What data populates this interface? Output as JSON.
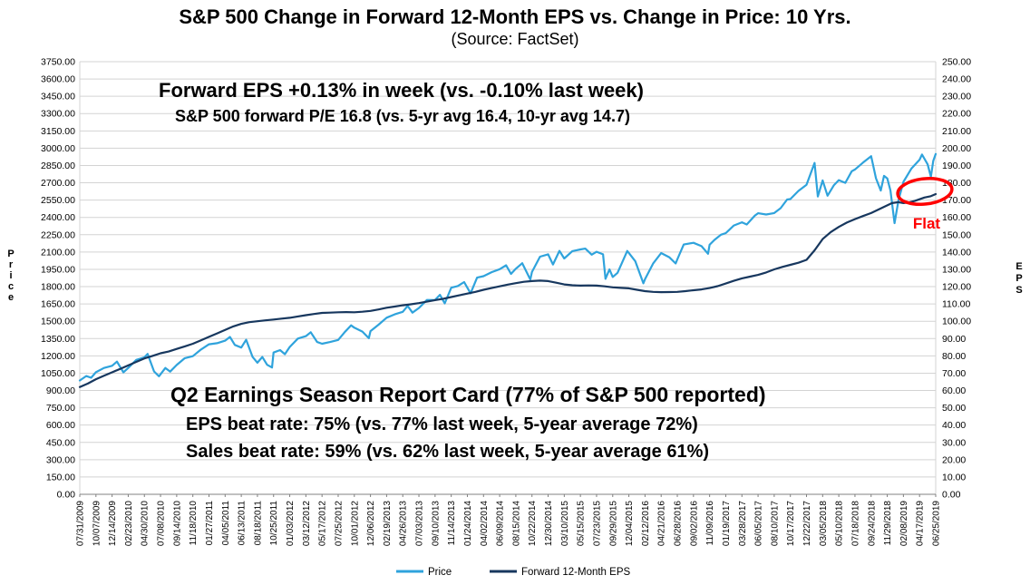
{
  "chart_data": {
    "type": "line",
    "title": "S&P 500 Change in Forward 12-Month EPS vs. Change in Price: 10 Yrs.",
    "subtitle": "(Source: FactSet)",
    "legend_position": "bottom",
    "grid": "horizontal",
    "colors": {
      "grid": "#D3D3D3",
      "axis": "#808080",
      "annotation_red": "#FF0000",
      "text": "#000000"
    },
    "y_left": {
      "label": "Price",
      "min": 0,
      "max": 3750,
      "step": 150
    },
    "y_right": {
      "label": "EPS",
      "min": 0,
      "max": 250,
      "step": 10
    },
    "x_tick_labels": [
      "07/31/2009",
      "10/07/2009",
      "12/14/2009",
      "02/23/2010",
      "04/30/2010",
      "07/08/2010",
      "09/14/2010",
      "11/18/2010",
      "01/27/2011",
      "04/05/2011",
      "06/13/2011",
      "08/18/2011",
      "10/25/2011",
      "01/03/2012",
      "03/12/2012",
      "05/17/2012",
      "07/25/2012",
      "10/01/2012",
      "12/06/2012",
      "02/19/2013",
      "04/26/2013",
      "07/03/2013",
      "09/10/2013",
      "11/14/2013",
      "01/24/2014",
      "04/02/2014",
      "06/09/2014",
      "08/15/2014",
      "10/22/2014",
      "12/30/2014",
      "03/10/2015",
      "05/15/2015",
      "07/23/2015",
      "09/29/2015",
      "12/04/2015",
      "02/12/2016",
      "04/21/2016",
      "06/28/2016",
      "09/02/2016",
      "11/09/2016",
      "01/19/2017",
      "03/28/2017",
      "06/05/2017",
      "08/10/2017",
      "10/17/2017",
      "12/22/2017",
      "03/05/2018",
      "05/10/2018",
      "07/18/2018",
      "09/24/2018",
      "11/29/2018",
      "02/08/2019",
      "04/17/2019",
      "06/25/2019"
    ],
    "annotations": {
      "eps_week": "Forward EPS +0.13% in week (vs. -0.10% last week)",
      "forward_pe": "S&P 500 forward P/E 16.8 (vs. 5-yr avg 16.4, 10-yr avg 14.7)",
      "report_card": "Q2 Earnings Season Report Card (77% of S&P 500 reported)",
      "eps_beat": "EPS beat rate: 75% (vs. 77% last week, 5-year average 72%)",
      "sales_beat": "Sales beat rate: 59% (vs. 62% last week, 5-year average 61%)",
      "flat": "Flat"
    },
    "series": [
      {
        "name": "Price",
        "axis": "left",
        "color": "#2FA3DC",
        "points": [
          [
            0,
            987
          ],
          [
            0.4,
            1025
          ],
          [
            0.7,
            1010
          ],
          [
            1,
            1058
          ],
          [
            1.5,
            1095
          ],
          [
            2,
            1114
          ],
          [
            2.3,
            1150
          ],
          [
            2.7,
            1057
          ],
          [
            3,
            1095
          ],
          [
            3.5,
            1165
          ],
          [
            4,
            1187
          ],
          [
            4.2,
            1217
          ],
          [
            4.6,
            1065
          ],
          [
            4.9,
            1023
          ],
          [
            5.3,
            1095
          ],
          [
            5.6,
            1064
          ],
          [
            6,
            1121
          ],
          [
            6.5,
            1180
          ],
          [
            7,
            1197
          ],
          [
            7.5,
            1255
          ],
          [
            8,
            1300
          ],
          [
            8.5,
            1310
          ],
          [
            9,
            1332
          ],
          [
            9.3,
            1364
          ],
          [
            9.6,
            1295
          ],
          [
            10,
            1272
          ],
          [
            10.3,
            1340
          ],
          [
            10.7,
            1190
          ],
          [
            11,
            1141
          ],
          [
            11.3,
            1190
          ],
          [
            11.6,
            1123
          ],
          [
            11.9,
            1099
          ],
          [
            12,
            1229
          ],
          [
            12.4,
            1250
          ],
          [
            12.7,
            1215
          ],
          [
            13,
            1277
          ],
          [
            13.5,
            1350
          ],
          [
            14,
            1371
          ],
          [
            14.3,
            1405
          ],
          [
            14.7,
            1320
          ],
          [
            15,
            1305
          ],
          [
            15.5,
            1320
          ],
          [
            16,
            1338
          ],
          [
            16.4,
            1405
          ],
          [
            16.8,
            1465
          ],
          [
            17,
            1444
          ],
          [
            17.5,
            1410
          ],
          [
            17.9,
            1353
          ],
          [
            18,
            1414
          ],
          [
            18.5,
            1470
          ],
          [
            19,
            1531
          ],
          [
            19.5,
            1560
          ],
          [
            20,
            1582
          ],
          [
            20.3,
            1633
          ],
          [
            20.6,
            1575
          ],
          [
            21,
            1615
          ],
          [
            21.5,
            1685
          ],
          [
            22,
            1684
          ],
          [
            22.3,
            1729
          ],
          [
            22.6,
            1655
          ],
          [
            23,
            1791
          ],
          [
            23.4,
            1805
          ],
          [
            23.8,
            1840
          ],
          [
            24,
            1790
          ],
          [
            24.2,
            1742
          ],
          [
            24.6,
            1878
          ],
          [
            25,
            1891
          ],
          [
            25.5,
            1925
          ],
          [
            26,
            1951
          ],
          [
            26.4,
            1985
          ],
          [
            26.7,
            1910
          ],
          [
            27,
            1955
          ],
          [
            27.4,
            2003
          ],
          [
            27.9,
            1862
          ],
          [
            28,
            1927
          ],
          [
            28.5,
            2060
          ],
          [
            29,
            2080
          ],
          [
            29.3,
            1992
          ],
          [
            29.7,
            2110
          ],
          [
            30,
            2044
          ],
          [
            30.5,
            2108
          ],
          [
            31,
            2123
          ],
          [
            31.3,
            2130
          ],
          [
            31.7,
            2077
          ],
          [
            32,
            2102
          ],
          [
            32.4,
            2080
          ],
          [
            32.55,
            1868
          ],
          [
            32.8,
            1950
          ],
          [
            33,
            1884
          ],
          [
            33.3,
            1920
          ],
          [
            33.9,
            2109
          ],
          [
            34,
            2092
          ],
          [
            34.4,
            2020
          ],
          [
            34.9,
            1829
          ],
          [
            35,
            1865
          ],
          [
            35.5,
            2000
          ],
          [
            36,
            2091
          ],
          [
            36.5,
            2055
          ],
          [
            36.9,
            2001
          ],
          [
            37,
            2036
          ],
          [
            37.4,
            2165
          ],
          [
            38,
            2180
          ],
          [
            38.5,
            2151
          ],
          [
            38.9,
            2085
          ],
          [
            39,
            2163
          ],
          [
            39.3,
            2205
          ],
          [
            39.7,
            2250
          ],
          [
            40,
            2264
          ],
          [
            40.5,
            2330
          ],
          [
            41,
            2358
          ],
          [
            41.3,
            2339
          ],
          [
            41.8,
            2415
          ],
          [
            42,
            2436
          ],
          [
            42.5,
            2425
          ],
          [
            43,
            2438
          ],
          [
            43.4,
            2480
          ],
          [
            43.8,
            2555
          ],
          [
            44,
            2559
          ],
          [
            44.5,
            2630
          ],
          [
            45,
            2683
          ],
          [
            45.5,
            2873
          ],
          [
            45.7,
            2581
          ],
          [
            46,
            2721
          ],
          [
            46.3,
            2588
          ],
          [
            46.7,
            2680
          ],
          [
            47,
            2723
          ],
          [
            47.4,
            2700
          ],
          [
            47.8,
            2800
          ],
          [
            48,
            2815
          ],
          [
            48.5,
            2875
          ],
          [
            49,
            2931
          ],
          [
            49.3,
            2740
          ],
          [
            49.6,
            2633
          ],
          [
            49.8,
            2760
          ],
          [
            50,
            2738
          ],
          [
            50.2,
            2633
          ],
          [
            50.45,
            2351
          ],
          [
            50.7,
            2550
          ],
          [
            51,
            2708
          ],
          [
            51.5,
            2825
          ],
          [
            52,
            2900
          ],
          [
            52.15,
            2945
          ],
          [
            52.5,
            2860
          ],
          [
            52.7,
            2752
          ],
          [
            52.85,
            2890
          ],
          [
            53,
            2950
          ]
        ]
      },
      {
        "name": "Forward 12-Month EPS",
        "axis": "right",
        "color": "#17375E",
        "points": [
          [
            0,
            62
          ],
          [
            0.5,
            64
          ],
          [
            1,
            66.5
          ],
          [
            1.5,
            68.5
          ],
          [
            2,
            70.5
          ],
          [
            2.5,
            72.5
          ],
          [
            3,
            74.5
          ],
          [
            3.5,
            76.5
          ],
          [
            4,
            78.5
          ],
          [
            4.5,
            80
          ],
          [
            5,
            81.5
          ],
          [
            5.5,
            82.5
          ],
          [
            6,
            84
          ],
          [
            6.5,
            85.5
          ],
          [
            7,
            87
          ],
          [
            7.5,
            89
          ],
          [
            8,
            91
          ],
          [
            8.5,
            93
          ],
          [
            9,
            95
          ],
          [
            9.5,
            97
          ],
          [
            10,
            98.5
          ],
          [
            10.5,
            99.5
          ],
          [
            11,
            100
          ],
          [
            11.5,
            100.5
          ],
          [
            12,
            101
          ],
          [
            12.5,
            101.5
          ],
          [
            13,
            102
          ],
          [
            13.5,
            102.8
          ],
          [
            14,
            103.5
          ],
          [
            14.5,
            104.2
          ],
          [
            15,
            104.8
          ],
          [
            15.5,
            105
          ],
          [
            16,
            105.2
          ],
          [
            16.5,
            105.3
          ],
          [
            17,
            105.2
          ],
          [
            17.5,
            105.5
          ],
          [
            18,
            106
          ],
          [
            18.5,
            106.8
          ],
          [
            19,
            107.8
          ],
          [
            19.5,
            108.5
          ],
          [
            20,
            109.2
          ],
          [
            20.5,
            109.8
          ],
          [
            21,
            110.5
          ],
          [
            21.5,
            111.3
          ],
          [
            22,
            112.2
          ],
          [
            22.5,
            113
          ],
          [
            23,
            114
          ],
          [
            23.5,
            115
          ],
          [
            24,
            116
          ],
          [
            24.5,
            117
          ],
          [
            25,
            118.2
          ],
          [
            25.5,
            119.2
          ],
          [
            26,
            120.2
          ],
          [
            26.5,
            121.2
          ],
          [
            27,
            122
          ],
          [
            27.5,
            122.8
          ],
          [
            28,
            123.2
          ],
          [
            28.5,
            123.5
          ],
          [
            29,
            123.2
          ],
          [
            29.5,
            122.3
          ],
          [
            30,
            121.3
          ],
          [
            30.5,
            120.8
          ],
          [
            31,
            120.6
          ],
          [
            31.5,
            120.7
          ],
          [
            32,
            120.6
          ],
          [
            32.5,
            120.2
          ],
          [
            33,
            119.6
          ],
          [
            33.5,
            119.3
          ],
          [
            34,
            119
          ],
          [
            34.5,
            118.2
          ],
          [
            35,
            117.4
          ],
          [
            35.5,
            117
          ],
          [
            36,
            116.8
          ],
          [
            36.5,
            116.9
          ],
          [
            37,
            117
          ],
          [
            37.5,
            117.4
          ],
          [
            38,
            117.9
          ],
          [
            38.5,
            118.4
          ],
          [
            39,
            119.2
          ],
          [
            39.5,
            120.3
          ],
          [
            40,
            121.8
          ],
          [
            40.5,
            123.4
          ],
          [
            41,
            124.8
          ],
          [
            41.5,
            125.8
          ],
          [
            42,
            126.8
          ],
          [
            42.5,
            128.2
          ],
          [
            43,
            130
          ],
          [
            43.5,
            131.4
          ],
          [
            44,
            132.6
          ],
          [
            44.5,
            133.8
          ],
          [
            45,
            135.5
          ],
          [
            45.5,
            141
          ],
          [
            46,
            147.5
          ],
          [
            46.5,
            151.5
          ],
          [
            47,
            154.5
          ],
          [
            47.5,
            157
          ],
          [
            48,
            159
          ],
          [
            48.5,
            160.8
          ],
          [
            49,
            162.5
          ],
          [
            49.5,
            164.8
          ],
          [
            50,
            167
          ],
          [
            50.3,
            168.3
          ],
          [
            50.7,
            168.8
          ],
          [
            51,
            168.3
          ],
          [
            51.3,
            168.6
          ],
          [
            51.7,
            169.5
          ],
          [
            52,
            170.5
          ],
          [
            52.3,
            171.5
          ],
          [
            52.7,
            172.3
          ],
          [
            53,
            173.5
          ]
        ]
      }
    ]
  }
}
